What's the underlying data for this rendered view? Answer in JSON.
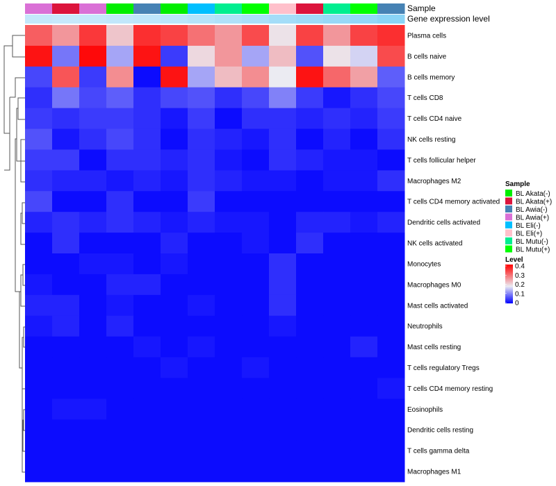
{
  "chart_data": {
    "type": "heatmap",
    "title": "",
    "annotations": {
      "sample_label": "Sample",
      "expression_label": "Gene expression level"
    },
    "columns": [
      {
        "sample": "BL Awia(+)",
        "expression": 0.3
      },
      {
        "sample": "BL Akata(+)",
        "expression": 0.28
      },
      {
        "sample": "BL Awia(+)",
        "expression": 0.3
      },
      {
        "sample": "BL Akata(-)",
        "expression": 0.32
      },
      {
        "sample": "BL Awia(-)",
        "expression": 0.34
      },
      {
        "sample": "BL Akata(-)",
        "expression": 0.36
      },
      {
        "sample": "BL Eli(-)",
        "expression": 0.4
      },
      {
        "sample": "BL Mutu(-)",
        "expression": 0.44
      },
      {
        "sample": "BL Mutu(+)",
        "expression": 0.48
      },
      {
        "sample": "BL Eli(+)",
        "expression": 0.52
      },
      {
        "sample": "BL Akata(+)",
        "expression": 0.56
      },
      {
        "sample": "BL Mutu(-)",
        "expression": 0.6
      },
      {
        "sample": "BL Mutu(+)",
        "expression": 0.64
      },
      {
        "sample": "BL Awia(-)",
        "expression": 0.7
      }
    ],
    "rows": [
      "Plasma cells",
      "B cells naive",
      "B cells memory",
      "T cells CD8",
      "T cells CD4 naive",
      "NK cells resting",
      "T cells follicular helper",
      "Macrophages M2",
      "T cells CD4 memory activated",
      "Dendritic cells activated",
      "NK cells activated",
      "Monocytes",
      "Macrophages M0",
      "Mast cells activated",
      "Neutrophils",
      "Mast cells resting",
      "T cells regulatory  Tregs",
      "T cells CD4 memory resting",
      "Eosinophils",
      "Dendritic cells resting",
      "T cells gamma delta",
      "Macrophages M1"
    ],
    "values": [
      [
        0.35,
        0.29,
        0.39,
        0.24,
        0.4,
        0.38,
        0.33,
        0.29,
        0.37,
        0.21,
        0.38,
        0.29,
        0.38,
        0.4
      ],
      [
        0.43,
        0.1,
        0.44,
        0.14,
        0.43,
        0.05,
        0.22,
        0.29,
        0.14,
        0.25,
        0.07,
        0.21,
        0.18,
        0.37
      ],
      [
        0.06,
        0.36,
        0.05,
        0.3,
        0.01,
        0.43,
        0.14,
        0.25,
        0.3,
        0.2,
        0.43,
        0.34,
        0.28,
        0.08
      ],
      [
        0.04,
        0.1,
        0.06,
        0.08,
        0.04,
        0.06,
        0.07,
        0.04,
        0.06,
        0.11,
        0.05,
        0.02,
        0.04,
        0.06
      ],
      [
        0.05,
        0.04,
        0.05,
        0.05,
        0.04,
        0.02,
        0.05,
        0.01,
        0.04,
        0.04,
        0.03,
        0.04,
        0.03,
        0.05
      ],
      [
        0.07,
        0.02,
        0.04,
        0.06,
        0.04,
        0.01,
        0.04,
        0.03,
        0.02,
        0.04,
        0.01,
        0.03,
        0.01,
        0.04
      ],
      [
        0.05,
        0.05,
        0.01,
        0.04,
        0.04,
        0.03,
        0.04,
        0.02,
        0.01,
        0.04,
        0.03,
        0.02,
        0.02,
        0.01
      ],
      [
        0.04,
        0.03,
        0.03,
        0.02,
        0.03,
        0.02,
        0.04,
        0.03,
        0.02,
        0.02,
        0.01,
        0.02,
        0.02,
        0.04
      ],
      [
        0.06,
        0.01,
        0.01,
        0.04,
        0.01,
        0.01,
        0.05,
        0.01,
        0.01,
        0.01,
        0.01,
        0.01,
        0.01,
        0.01
      ],
      [
        0.03,
        0.04,
        0.03,
        0.04,
        0.03,
        0.02,
        0.03,
        0.02,
        0.02,
        0.01,
        0.03,
        0.03,
        0.02,
        0.03
      ],
      [
        0.01,
        0.04,
        0.01,
        0.01,
        0.01,
        0.03,
        0.01,
        0.01,
        0.02,
        0.01,
        0.04,
        0.01,
        0.01,
        0.01
      ],
      [
        0.01,
        0.01,
        0.02,
        0.02,
        0.01,
        0.02,
        0.01,
        0.01,
        0.01,
        0.04,
        0.01,
        0.01,
        0.01,
        0.01
      ],
      [
        0.02,
        0.01,
        0.01,
        0.03,
        0.03,
        0.01,
        0.01,
        0.01,
        0.01,
        0.04,
        0.01,
        0.01,
        0.01,
        0.01
      ],
      [
        0.03,
        0.03,
        0.01,
        0.02,
        0.01,
        0.01,
        0.02,
        0.01,
        0.01,
        0.04,
        0.01,
        0.01,
        0.01,
        0.01
      ],
      [
        0.02,
        0.03,
        0.01,
        0.03,
        0.01,
        0.01,
        0.01,
        0.01,
        0.01,
        0.02,
        0.01,
        0.01,
        0.01,
        0.01
      ],
      [
        0.01,
        0.01,
        0.01,
        0.01,
        0.02,
        0.01,
        0.02,
        0.01,
        0.01,
        0.01,
        0.01,
        0.01,
        0.03,
        0.01
      ],
      [
        0.01,
        0.01,
        0.01,
        0.01,
        0.01,
        0.02,
        0.01,
        0.01,
        0.02,
        0.01,
        0.01,
        0.01,
        0.01,
        0.01
      ],
      [
        0.01,
        0.01,
        0.01,
        0.01,
        0.01,
        0.01,
        0.01,
        0.01,
        0.01,
        0.01,
        0.01,
        0.01,
        0.01,
        0.02
      ],
      [
        0.01,
        0.02,
        0.02,
        0.01,
        0.01,
        0.01,
        0.01,
        0.01,
        0.01,
        0.01,
        0.01,
        0.01,
        0.01,
        0.01
      ],
      [
        0.01,
        0.01,
        0.01,
        0.01,
        0.01,
        0.01,
        0.01,
        0.01,
        0.01,
        0.01,
        0.01,
        0.01,
        0.01,
        0.01
      ],
      [
        0.01,
        0.01,
        0.01,
        0.01,
        0.01,
        0.01,
        0.01,
        0.01,
        0.01,
        0.01,
        0.01,
        0.01,
        0.01,
        0.01
      ],
      [
        0.01,
        0.01,
        0.01,
        0.01,
        0.01,
        0.01,
        0.01,
        0.01,
        0.01,
        0.01,
        0.01,
        0.01,
        0.01,
        0.01
      ]
    ],
    "color_scale": {
      "min": 0,
      "max": 0.45,
      "low_color": "#0000ff",
      "mid_color": "#ebebf2",
      "high_color": "#ff0000",
      "mid_value": 0.2
    },
    "expression_scale": {
      "low_color": "#f0f8ff",
      "high_color": "#5ec4f2"
    },
    "sample_colors": {
      "BL Akata(-)": "#00ee00",
      "BL Akata(+)": "#dc143c",
      "BL Awia(-)": "#4682b4",
      "BL Awia(+)": "#da70d6",
      "BL Eli(-)": "#00bfff",
      "BL Eli(+)": "#ffc0cb",
      "BL Mutu(-)": "#00ee90",
      "BL Mutu(+)": "#00ff00"
    },
    "legend": {
      "placement": "right",
      "sample_title": "Sample",
      "sample_entries": [
        "BL Akata(-)",
        "BL Akata(+)",
        "BL Awia(-)",
        "BL Awia(+)",
        "BL Eli(-)",
        "BL Eli(+)",
        "BL Mutu(-)",
        "BL Mutu(+)"
      ],
      "level_title": "Level",
      "level_ticks": [
        {
          "value": 0.4,
          "label": "0.4"
        },
        {
          "value": 0.3,
          "label": "0.3"
        },
        {
          "value": 0.2,
          "label": "0.2"
        },
        {
          "value": 0.1,
          "label": "0.1"
        },
        {
          "value": 0,
          "label": "0"
        }
      ]
    }
  }
}
